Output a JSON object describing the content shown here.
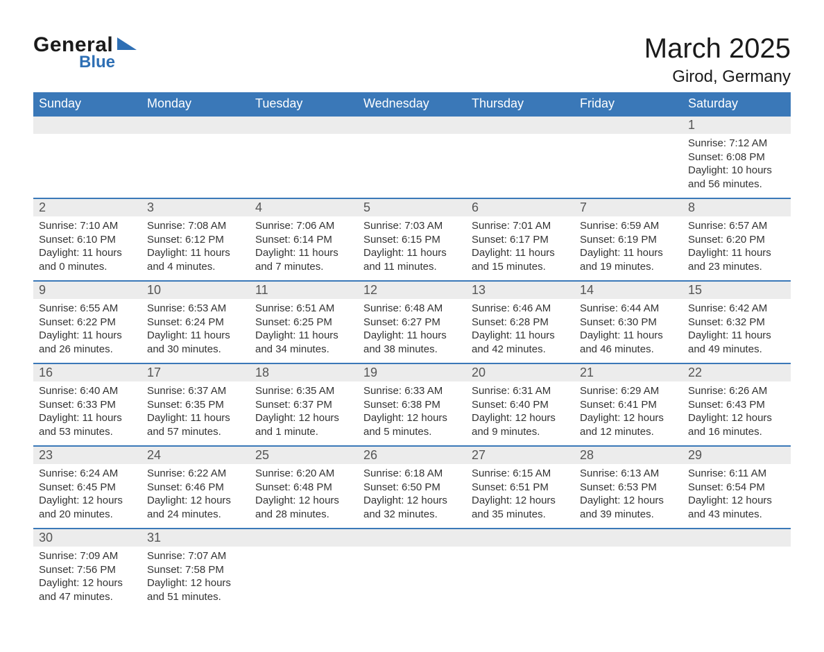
{
  "logo": {
    "word1": "General",
    "word2": "Blue"
  },
  "title": "March 2025",
  "location": "Girod, Germany",
  "colors": {
    "header_bg": "#3a78b8",
    "header_text": "#ffffff",
    "daynum_bg": "#ececec",
    "border": "#3a78b8",
    "logo_accent": "#2e6fb4",
    "text": "#333333",
    "background": "#ffffff"
  },
  "typography": {
    "title_fontsize": 40,
    "location_fontsize": 24,
    "header_fontsize": 18,
    "daynum_fontsize": 18,
    "body_fontsize": 15
  },
  "layout": {
    "columns": 7,
    "leading_blanks": 6,
    "trailing_blanks": 5
  },
  "weekdays": [
    "Sunday",
    "Monday",
    "Tuesday",
    "Wednesday",
    "Thursday",
    "Friday",
    "Saturday"
  ],
  "days": [
    {
      "n": "1",
      "sunrise": "Sunrise: 7:12 AM",
      "sunset": "Sunset: 6:08 PM",
      "day1": "Daylight: 10 hours",
      "day2": "and 56 minutes."
    },
    {
      "n": "2",
      "sunrise": "Sunrise: 7:10 AM",
      "sunset": "Sunset: 6:10 PM",
      "day1": "Daylight: 11 hours",
      "day2": "and 0 minutes."
    },
    {
      "n": "3",
      "sunrise": "Sunrise: 7:08 AM",
      "sunset": "Sunset: 6:12 PM",
      "day1": "Daylight: 11 hours",
      "day2": "and 4 minutes."
    },
    {
      "n": "4",
      "sunrise": "Sunrise: 7:06 AM",
      "sunset": "Sunset: 6:14 PM",
      "day1": "Daylight: 11 hours",
      "day2": "and 7 minutes."
    },
    {
      "n": "5",
      "sunrise": "Sunrise: 7:03 AM",
      "sunset": "Sunset: 6:15 PM",
      "day1": "Daylight: 11 hours",
      "day2": "and 11 minutes."
    },
    {
      "n": "6",
      "sunrise": "Sunrise: 7:01 AM",
      "sunset": "Sunset: 6:17 PM",
      "day1": "Daylight: 11 hours",
      "day2": "and 15 minutes."
    },
    {
      "n": "7",
      "sunrise": "Sunrise: 6:59 AM",
      "sunset": "Sunset: 6:19 PM",
      "day1": "Daylight: 11 hours",
      "day2": "and 19 minutes."
    },
    {
      "n": "8",
      "sunrise": "Sunrise: 6:57 AM",
      "sunset": "Sunset: 6:20 PM",
      "day1": "Daylight: 11 hours",
      "day2": "and 23 minutes."
    },
    {
      "n": "9",
      "sunrise": "Sunrise: 6:55 AM",
      "sunset": "Sunset: 6:22 PM",
      "day1": "Daylight: 11 hours",
      "day2": "and 26 minutes."
    },
    {
      "n": "10",
      "sunrise": "Sunrise: 6:53 AM",
      "sunset": "Sunset: 6:24 PM",
      "day1": "Daylight: 11 hours",
      "day2": "and 30 minutes."
    },
    {
      "n": "11",
      "sunrise": "Sunrise: 6:51 AM",
      "sunset": "Sunset: 6:25 PM",
      "day1": "Daylight: 11 hours",
      "day2": "and 34 minutes."
    },
    {
      "n": "12",
      "sunrise": "Sunrise: 6:48 AM",
      "sunset": "Sunset: 6:27 PM",
      "day1": "Daylight: 11 hours",
      "day2": "and 38 minutes."
    },
    {
      "n": "13",
      "sunrise": "Sunrise: 6:46 AM",
      "sunset": "Sunset: 6:28 PM",
      "day1": "Daylight: 11 hours",
      "day2": "and 42 minutes."
    },
    {
      "n": "14",
      "sunrise": "Sunrise: 6:44 AM",
      "sunset": "Sunset: 6:30 PM",
      "day1": "Daylight: 11 hours",
      "day2": "and 46 minutes."
    },
    {
      "n": "15",
      "sunrise": "Sunrise: 6:42 AM",
      "sunset": "Sunset: 6:32 PM",
      "day1": "Daylight: 11 hours",
      "day2": "and 49 minutes."
    },
    {
      "n": "16",
      "sunrise": "Sunrise: 6:40 AM",
      "sunset": "Sunset: 6:33 PM",
      "day1": "Daylight: 11 hours",
      "day2": "and 53 minutes."
    },
    {
      "n": "17",
      "sunrise": "Sunrise: 6:37 AM",
      "sunset": "Sunset: 6:35 PM",
      "day1": "Daylight: 11 hours",
      "day2": "and 57 minutes."
    },
    {
      "n": "18",
      "sunrise": "Sunrise: 6:35 AM",
      "sunset": "Sunset: 6:37 PM",
      "day1": "Daylight: 12 hours",
      "day2": "and 1 minute."
    },
    {
      "n": "19",
      "sunrise": "Sunrise: 6:33 AM",
      "sunset": "Sunset: 6:38 PM",
      "day1": "Daylight: 12 hours",
      "day2": "and 5 minutes."
    },
    {
      "n": "20",
      "sunrise": "Sunrise: 6:31 AM",
      "sunset": "Sunset: 6:40 PM",
      "day1": "Daylight: 12 hours",
      "day2": "and 9 minutes."
    },
    {
      "n": "21",
      "sunrise": "Sunrise: 6:29 AM",
      "sunset": "Sunset: 6:41 PM",
      "day1": "Daylight: 12 hours",
      "day2": "and 12 minutes."
    },
    {
      "n": "22",
      "sunrise": "Sunrise: 6:26 AM",
      "sunset": "Sunset: 6:43 PM",
      "day1": "Daylight: 12 hours",
      "day2": "and 16 minutes."
    },
    {
      "n": "23",
      "sunrise": "Sunrise: 6:24 AM",
      "sunset": "Sunset: 6:45 PM",
      "day1": "Daylight: 12 hours",
      "day2": "and 20 minutes."
    },
    {
      "n": "24",
      "sunrise": "Sunrise: 6:22 AM",
      "sunset": "Sunset: 6:46 PM",
      "day1": "Daylight: 12 hours",
      "day2": "and 24 minutes."
    },
    {
      "n": "25",
      "sunrise": "Sunrise: 6:20 AM",
      "sunset": "Sunset: 6:48 PM",
      "day1": "Daylight: 12 hours",
      "day2": "and 28 minutes."
    },
    {
      "n": "26",
      "sunrise": "Sunrise: 6:18 AM",
      "sunset": "Sunset: 6:50 PM",
      "day1": "Daylight: 12 hours",
      "day2": "and 32 minutes."
    },
    {
      "n": "27",
      "sunrise": "Sunrise: 6:15 AM",
      "sunset": "Sunset: 6:51 PM",
      "day1": "Daylight: 12 hours",
      "day2": "and 35 minutes."
    },
    {
      "n": "28",
      "sunrise": "Sunrise: 6:13 AM",
      "sunset": "Sunset: 6:53 PM",
      "day1": "Daylight: 12 hours",
      "day2": "and 39 minutes."
    },
    {
      "n": "29",
      "sunrise": "Sunrise: 6:11 AM",
      "sunset": "Sunset: 6:54 PM",
      "day1": "Daylight: 12 hours",
      "day2": "and 43 minutes."
    },
    {
      "n": "30",
      "sunrise": "Sunrise: 7:09 AM",
      "sunset": "Sunset: 7:56 PM",
      "day1": "Daylight: 12 hours",
      "day2": "and 47 minutes."
    },
    {
      "n": "31",
      "sunrise": "Sunrise: 7:07 AM",
      "sunset": "Sunset: 7:58 PM",
      "day1": "Daylight: 12 hours",
      "day2": "and 51 minutes."
    }
  ]
}
